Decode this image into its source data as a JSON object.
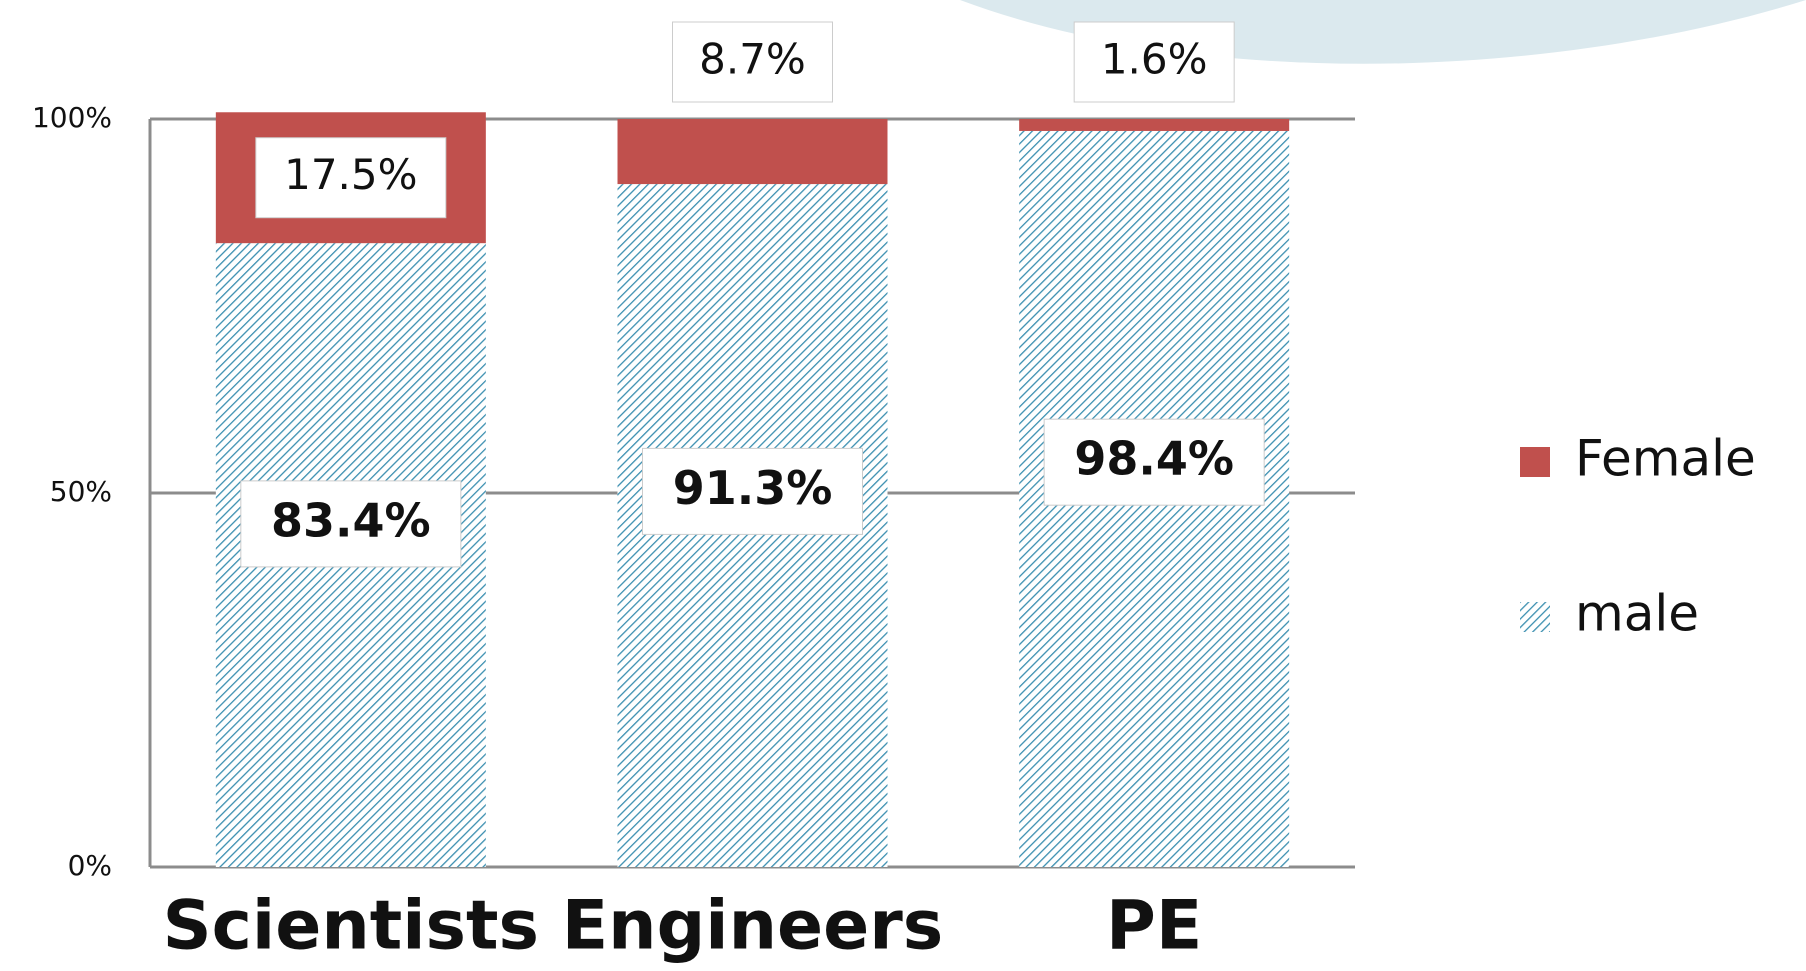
{
  "chart_data": {
    "type": "stacked_bar",
    "categories": [
      "Scientists",
      "Engineers",
      "PE"
    ],
    "series": [
      {
        "name": "male",
        "color": "#3b8fb0",
        "values": [
          83.4,
          91.3,
          98.4
        ],
        "value_labels": [
          "83.4%",
          "91.3%",
          "98.4%"
        ]
      },
      {
        "name": "Female",
        "color": "#c0504d",
        "values": [
          17.5,
          8.7,
          1.6
        ],
        "value_labels": [
          "17.5%",
          "8.7%",
          "1.6%"
        ]
      }
    ],
    "ylim": [
      0,
      100
    ],
    "yticks": [
      {
        "value": 0,
        "label": "0%"
      },
      {
        "value": 50,
        "label": "50%"
      },
      {
        "value": 100,
        "label": "100%"
      }
    ],
    "grid": true
  }
}
